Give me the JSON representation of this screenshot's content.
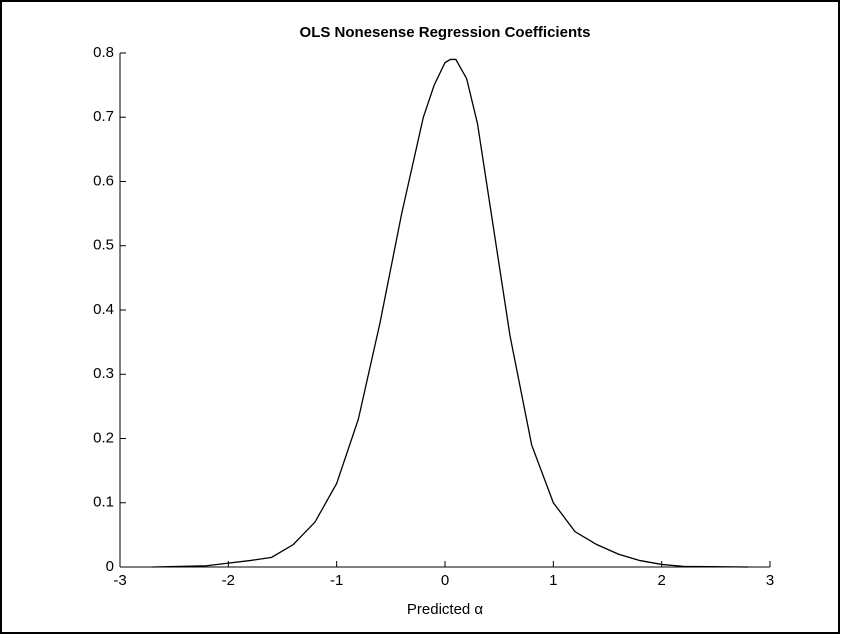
{
  "chart_data": {
    "type": "line",
    "title": "OLS Nonesense Regression Coefficients",
    "xlabel": "Predicted  α",
    "x": [
      -2.7,
      -2.2,
      -2.0,
      -1.8,
      -1.6,
      -1.4,
      -1.2,
      -1.0,
      -0.8,
      -0.6,
      -0.4,
      -0.2,
      -0.1,
      0.0,
      0.05,
      0.1,
      0.2,
      0.3,
      0.4,
      0.6,
      0.8,
      1.0,
      1.2,
      1.4,
      1.6,
      1.8,
      2.0,
      2.2,
      2.8
    ],
    "series": [
      {
        "color": "#000000",
        "values": [
          0,
          0.002,
          0.006,
          0.01,
          0.015,
          0.035,
          0.07,
          0.13,
          0.23,
          0.38,
          0.55,
          0.7,
          0.75,
          0.785,
          0.79,
          0.79,
          0.76,
          0.69,
          0.58,
          0.36,
          0.19,
          0.1,
          0.055,
          0.035,
          0.02,
          0.01,
          0.004,
          0.001,
          0
        ]
      }
    ],
    "xlim": [
      -3,
      3
    ],
    "xticks": [
      -3,
      -2,
      -1,
      0,
      1,
      2,
      3
    ],
    "ylim": [
      0,
      0.8
    ],
    "yticks": [
      0,
      0.1,
      0.2,
      0.3,
      0.4,
      0.5,
      0.6,
      0.7,
      0.8
    ]
  }
}
